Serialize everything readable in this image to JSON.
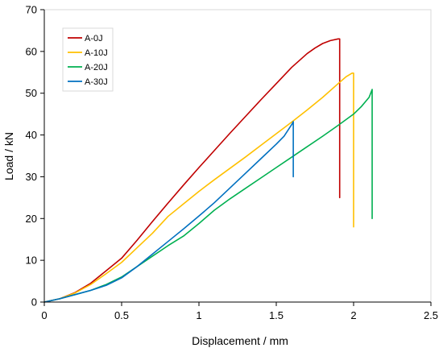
{
  "chart_data": {
    "type": "line",
    "title": "",
    "xlabel": "Displacement / mm",
    "ylabel": "Load / kN",
    "xlim": [
      0,
      2.5
    ],
    "ylim": [
      0,
      70
    ],
    "xticks": [
      "0",
      "0.5",
      "1",
      "1.5",
      "2",
      "2.5"
    ],
    "yticks": [
      "0",
      "10",
      "20",
      "30",
      "40",
      "50",
      "60",
      "70"
    ],
    "grid": false,
    "legend_position": "top-left",
    "series": [
      {
        "name": "A-0J",
        "color": "#c00000",
        "x": [
          0,
          0.1,
          0.2,
          0.3,
          0.4,
          0.5,
          0.6,
          0.7,
          0.8,
          0.9,
          1.0,
          1.1,
          1.2,
          1.3,
          1.4,
          1.5,
          1.6,
          1.7,
          1.75,
          1.8,
          1.85,
          1.9,
          1.91,
          1.91
        ],
        "y": [
          0,
          0.8,
          2.3,
          4.5,
          7.5,
          10.5,
          14.8,
          19.3,
          23.7,
          28.0,
          32.2,
          36.3,
          40.4,
          44.4,
          48.4,
          52.3,
          56.2,
          59.5,
          60.8,
          61.9,
          62.6,
          63.0,
          63.0,
          25
        ]
      },
      {
        "name": "A-10J",
        "color": "#ffc000",
        "x": [
          0,
          0.1,
          0.2,
          0.3,
          0.4,
          0.5,
          0.6,
          0.7,
          0.8,
          0.9,
          1.0,
          1.1,
          1.2,
          1.3,
          1.4,
          1.5,
          1.6,
          1.7,
          1.8,
          1.9,
          1.95,
          1.99,
          2.0,
          2.0
        ],
        "y": [
          0,
          0.8,
          2.2,
          4.2,
          6.8,
          9.5,
          13.0,
          16.5,
          20.5,
          23.5,
          26.5,
          29.3,
          32.0,
          34.7,
          37.5,
          40.3,
          43.1,
          46.0,
          49.0,
          52.3,
          53.9,
          54.8,
          54.8,
          18
        ]
      },
      {
        "name": "A-20J",
        "color": "#00b050",
        "x": [
          0,
          0.1,
          0.2,
          0.3,
          0.4,
          0.5,
          0.6,
          0.7,
          0.8,
          0.9,
          1.0,
          1.1,
          1.2,
          1.3,
          1.4,
          1.5,
          1.6,
          1.7,
          1.8,
          1.9,
          2.0,
          2.05,
          2.1,
          2.12,
          2.12
        ],
        "y": [
          0,
          0.8,
          1.8,
          2.8,
          4.2,
          6.0,
          8.5,
          11.0,
          13.5,
          15.8,
          18.8,
          22.0,
          24.7,
          27.2,
          29.7,
          32.2,
          34.7,
          37.2,
          39.7,
          42.3,
          45.0,
          46.8,
          49.0,
          50.9,
          20
        ]
      },
      {
        "name": "A-30J",
        "color": "#0070c0",
        "x": [
          0,
          0.1,
          0.2,
          0.3,
          0.4,
          0.5,
          0.6,
          0.7,
          0.8,
          0.9,
          1.0,
          1.1,
          1.2,
          1.3,
          1.4,
          1.5,
          1.55,
          1.6,
          1.61,
          1.61
        ],
        "y": [
          0,
          0.8,
          1.8,
          2.8,
          4.0,
          5.8,
          8.5,
          11.5,
          14.5,
          17.5,
          20.6,
          23.8,
          27.3,
          30.8,
          34.3,
          37.8,
          39.7,
          42.5,
          43.2,
          30
        ]
      }
    ]
  }
}
